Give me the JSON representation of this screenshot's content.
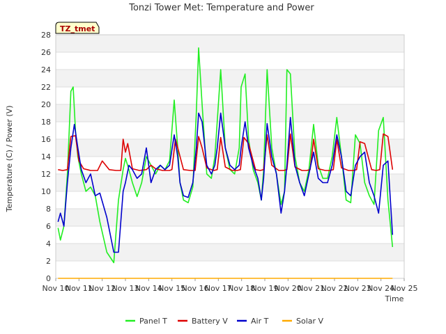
{
  "chart_data": {
    "type": "line",
    "title": "Tonzi Tower Met: Temperature and Power",
    "xlabel": "Time",
    "ylabel": "Temperature (C) / Power (V)",
    "station_label": "TZ_tmet",
    "xlim": [
      0,
      15
    ],
    "ylim": [
      0,
      28
    ],
    "x_ticks": [
      {
        "pos": 0,
        "label": "Nov 10"
      },
      {
        "pos": 1,
        "label": "Nov 11"
      },
      {
        "pos": 2,
        "label": "Nov 12"
      },
      {
        "pos": 3,
        "label": "Nov 13"
      },
      {
        "pos": 4,
        "label": "Nov 14"
      },
      {
        "pos": 5,
        "label": "Nov 15"
      },
      {
        "pos": 6,
        "label": "Nov 16"
      },
      {
        "pos": 7,
        "label": "Nov 17"
      },
      {
        "pos": 8,
        "label": "Nov 18"
      },
      {
        "pos": 9,
        "label": "Nov 19"
      },
      {
        "pos": 10,
        "label": "Nov 20"
      },
      {
        "pos": 11,
        "label": "Nov 21"
      },
      {
        "pos": 12,
        "label": "Nov 22"
      },
      {
        "pos": 13,
        "label": "Nov 23"
      },
      {
        "pos": 14,
        "label": "Nov 24"
      },
      {
        "pos": 15,
        "label": "Nov 25"
      }
    ],
    "y_ticks": [
      0,
      2,
      4,
      6,
      8,
      10,
      12,
      14,
      16,
      18,
      20,
      22,
      24,
      26,
      28
    ],
    "grid": true,
    "legend_position": "bottom",
    "series": [
      {
        "name": "Panel T",
        "color": "#22ee22",
        "x": [
          0.1,
          0.2,
          0.35,
          0.5,
          0.65,
          0.75,
          0.85,
          0.95,
          1.1,
          1.3,
          1.5,
          1.7,
          1.9,
          2.2,
          2.5,
          2.7,
          2.9,
          3.0,
          3.15,
          3.3,
          3.5,
          3.7,
          3.9,
          4.1,
          4.3,
          4.5,
          4.7,
          4.9,
          5.1,
          5.25,
          5.35,
          5.5,
          5.7,
          5.9,
          6.05,
          6.15,
          6.3,
          6.5,
          6.7,
          6.85,
          6.95,
          7.1,
          7.3,
          7.5,
          7.7,
          7.9,
          7.98,
          8.15,
          8.3,
          8.5,
          8.7,
          8.85,
          8.95,
          9.1,
          9.3,
          9.5,
          9.7,
          9.85,
          9.95,
          10.1,
          10.3,
          10.5,
          10.7,
          10.9,
          11.1,
          11.3,
          11.5,
          11.7,
          11.9,
          12.1,
          12.3,
          12.5,
          12.7,
          12.9,
          13.1,
          13.3,
          13.5,
          13.7,
          13.9,
          14.1,
          14.3,
          14.5
        ],
        "y": [
          5.8,
          4.4,
          6.0,
          12.0,
          21.5,
          22.0,
          17.0,
          14.0,
          12.0,
          10.0,
          10.5,
          9.5,
          6.5,
          3.0,
          1.8,
          9.0,
          12.5,
          13.8,
          12.5,
          11.0,
          9.4,
          11.0,
          14.0,
          13.0,
          12.0,
          13.0,
          12.5,
          13.5,
          20.5,
          15.0,
          11.0,
          9.0,
          8.7,
          10.5,
          19.0,
          26.5,
          20.0,
          12.0,
          11.5,
          14.0,
          18.0,
          24.0,
          15.0,
          12.5,
          12.0,
          15.0,
          22.0,
          23.5,
          16.0,
          12.5,
          11.0,
          9.0,
          12.5,
          24.0,
          15.0,
          12.0,
          8.5,
          10.0,
          24.0,
          23.5,
          14.0,
          11.0,
          10.0,
          12.5,
          17.7,
          13.0,
          11.5,
          11.5,
          14.0,
          18.5,
          14.0,
          9.0,
          8.7,
          16.5,
          15.5,
          11.0,
          9.5,
          8.5,
          17.0,
          18.5,
          9.0,
          3.6
        ]
      },
      {
        "name": "Battery V",
        "color": "#dd0000",
        "x": [
          0.1,
          0.3,
          0.5,
          0.65,
          0.85,
          1.0,
          1.2,
          1.5,
          1.8,
          2.0,
          2.3,
          2.6,
          2.8,
          2.9,
          3.0,
          3.1,
          3.3,
          3.6,
          3.9,
          4.1,
          4.3,
          4.6,
          4.9,
          5.0,
          5.15,
          5.3,
          5.5,
          5.8,
          6.0,
          6.15,
          6.3,
          6.5,
          6.8,
          6.95,
          7.1,
          7.3,
          7.6,
          7.8,
          7.95,
          8.1,
          8.3,
          8.6,
          8.8,
          8.95,
          9.1,
          9.3,
          9.6,
          9.8,
          9.95,
          10.1,
          10.3,
          10.6,
          10.8,
          10.95,
          11.1,
          11.3,
          11.6,
          11.8,
          11.95,
          12.1,
          12.3,
          12.6,
          12.8,
          12.95,
          13.1,
          13.3,
          13.6,
          13.8,
          13.95,
          14.1,
          14.3,
          14.5
        ],
        "y": [
          12.5,
          12.4,
          12.5,
          16.3,
          16.4,
          13.5,
          12.6,
          12.4,
          12.4,
          13.5,
          12.5,
          12.4,
          12.4,
          16.0,
          14.5,
          15.5,
          12.6,
          12.4,
          12.5,
          13.0,
          12.6,
          12.4,
          12.4,
          12.5,
          16.0,
          14.5,
          12.5,
          12.4,
          12.4,
          16.3,
          15.0,
          12.7,
          12.4,
          12.5,
          16.2,
          12.8,
          12.4,
          12.4,
          12.5,
          16.2,
          15.5,
          12.5,
          12.4,
          12.5,
          16.5,
          13.0,
          12.4,
          12.4,
          12.5,
          16.6,
          12.8,
          12.4,
          12.4,
          12.5,
          16.0,
          12.6,
          12.4,
          12.4,
          12.5,
          16.0,
          12.7,
          12.4,
          12.4,
          12.5,
          15.7,
          15.5,
          12.5,
          12.4,
          12.5,
          16.6,
          16.3,
          12.5
        ]
      },
      {
        "name": "Air T",
        "color": "#0000cc",
        "x": [
          0.1,
          0.2,
          0.35,
          0.5,
          0.65,
          0.8,
          0.95,
          1.1,
          1.3,
          1.5,
          1.7,
          1.9,
          2.2,
          2.5,
          2.7,
          2.9,
          3.0,
          3.15,
          3.3,
          3.5,
          3.7,
          3.9,
          4.1,
          4.3,
          4.5,
          4.7,
          4.9,
          5.1,
          5.25,
          5.35,
          5.5,
          5.7,
          5.9,
          6.05,
          6.15,
          6.3,
          6.5,
          6.7,
          6.85,
          6.95,
          7.1,
          7.3,
          7.5,
          7.7,
          7.9,
          7.98,
          8.15,
          8.3,
          8.5,
          8.7,
          8.85,
          8.95,
          9.1,
          9.3,
          9.5,
          9.7,
          9.85,
          9.95,
          10.1,
          10.3,
          10.5,
          10.7,
          10.9,
          11.1,
          11.3,
          11.5,
          11.7,
          11.9,
          12.1,
          12.3,
          12.5,
          12.7,
          12.9,
          13.1,
          13.3,
          13.5,
          13.7,
          13.9,
          14.1,
          14.3,
          14.5
        ],
        "y": [
          6.5,
          7.5,
          6.0,
          11.0,
          15.0,
          17.7,
          15.0,
          12.5,
          11.0,
          12.0,
          9.5,
          9.8,
          7.0,
          3.0,
          3.0,
          10.0,
          11.0,
          13.0,
          12.5,
          11.5,
          12.0,
          15.0,
          11.0,
          12.5,
          13.0,
          12.5,
          13.0,
          16.5,
          14.0,
          11.0,
          9.5,
          9.3,
          11.0,
          15.0,
          19.0,
          18.0,
          13.0,
          12.0,
          13.0,
          15.0,
          19.0,
          15.0,
          13.0,
          12.5,
          13.0,
          15.0,
          18.0,
          15.0,
          13.0,
          11.5,
          9.0,
          11.5,
          17.8,
          14.0,
          12.0,
          7.5,
          10.0,
          13.0,
          18.5,
          13.0,
          11.0,
          9.5,
          12.0,
          14.5,
          11.5,
          11.0,
          11.0,
          13.0,
          16.5,
          14.0,
          10.0,
          9.5,
          13.0,
          14.0,
          14.5,
          11.0,
          9.5,
          7.5,
          13.0,
          13.5,
          5.0
        ]
      },
      {
        "name": "Solar V",
        "color": "#ffaa00",
        "x": [
          0.1,
          14.5
        ],
        "y": [
          0,
          0
        ]
      }
    ]
  }
}
